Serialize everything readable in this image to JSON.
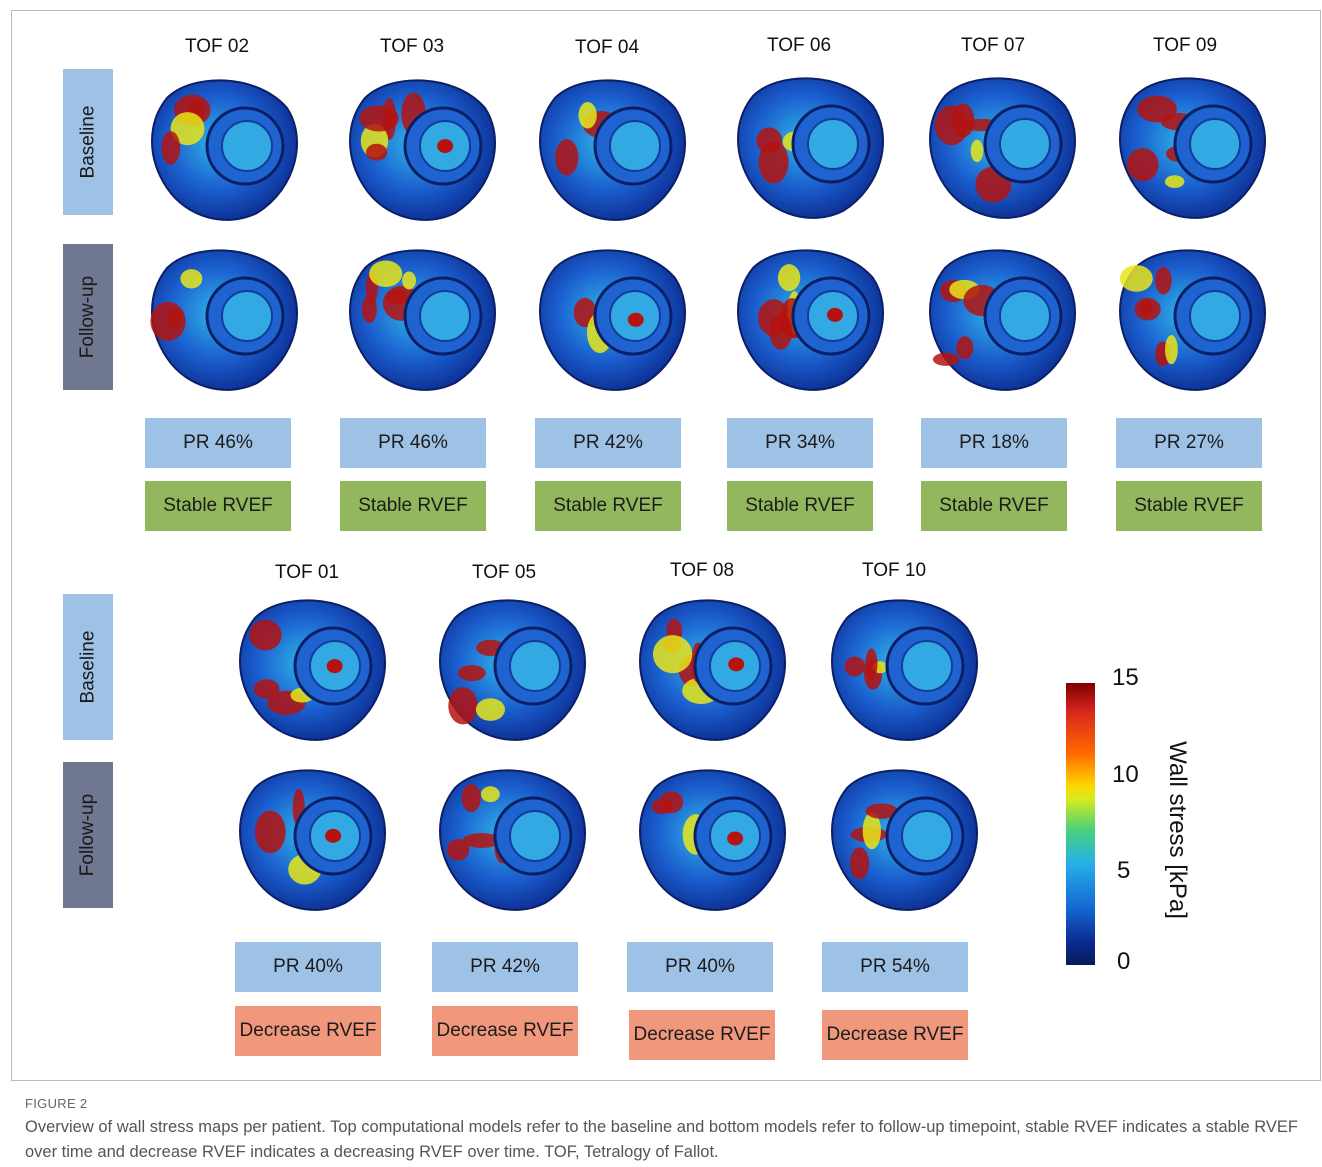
{
  "figure": {
    "number": "FIGURE 2",
    "caption": "Overview of wall stress maps per patient. Top computational models refer to the baseline and bottom models refer to follow-up timepoint, stable RVEF indicates a stable RVEF over time and decrease RVEF indicates a decreasing RVEF over time. TOF, Tetralogy of Fallot."
  },
  "row_labels": {
    "baseline": "Baseline",
    "followup": "Follow-up"
  },
  "stable_group": [
    {
      "id": "TOF 02",
      "pr": "PR 46%",
      "rvef": "Stable RVEF"
    },
    {
      "id": "TOF 03",
      "pr": "PR 46%",
      "rvef": "Stable RVEF"
    },
    {
      "id": "TOF 04",
      "pr": "PR 42%",
      "rvef": "Stable RVEF"
    },
    {
      "id": "TOF 06",
      "pr": "PR 34%",
      "rvef": "Stable RVEF"
    },
    {
      "id": "TOF 07",
      "pr": "PR 18%",
      "rvef": "Stable RVEF"
    },
    {
      "id": "TOF 09",
      "pr": "PR 27%",
      "rvef": "Stable RVEF"
    }
  ],
  "decrease_group": [
    {
      "id": "TOF 01",
      "pr": "PR 40%",
      "rvef": "Decrease RVEF"
    },
    {
      "id": "TOF 05",
      "pr": "PR 42%",
      "rvef": "Decrease RVEF"
    },
    {
      "id": "TOF 08",
      "pr": "PR 40%",
      "rvef": "Decrease RVEF"
    },
    {
      "id": "TOF 10",
      "pr": "PR 54%",
      "rvef": "Decrease RVEF"
    }
  ],
  "colorbar": {
    "label": "Wall stress [kPa]",
    "ticks": [
      "15",
      "10",
      "5",
      "0"
    ],
    "colors": {
      "high": "#b4130f",
      "mid": "#e8e61a",
      "low": "#0b2a8e"
    }
  }
}
